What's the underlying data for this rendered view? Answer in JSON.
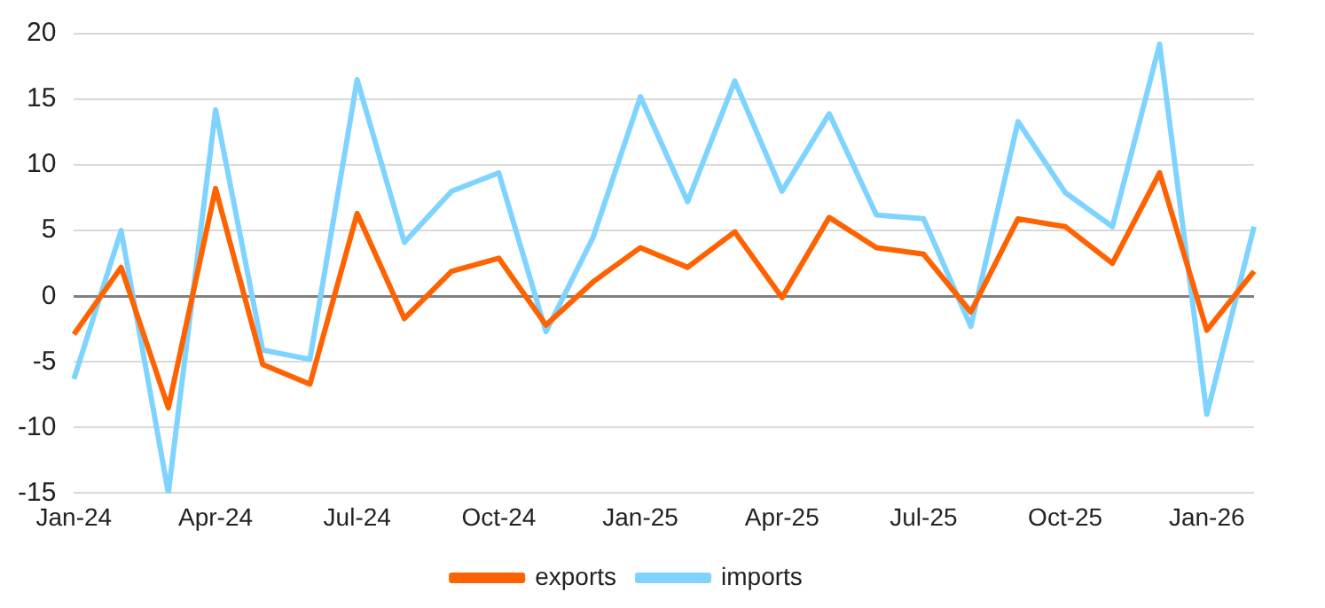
{
  "chart_data": {
    "type": "line",
    "categories": [
      "Jan-24",
      null,
      null,
      "Apr-24",
      null,
      null,
      "Jul-24",
      null,
      null,
      "Oct-24",
      null,
      null,
      "Jan-25",
      null,
      null,
      "Apr-25",
      null,
      null,
      "Jul-25",
      null,
      null,
      "Oct-25",
      null,
      null,
      "Jan-26",
      null
    ],
    "series": [
      {
        "name": "exports",
        "color": "#ff6200",
        "values": [
          -2.9,
          2.2,
          -8.5,
          8.2,
          -5.2,
          -6.7,
          6.3,
          -1.7,
          1.9,
          2.9,
          -2.2,
          1.1,
          3.7,
          2.2,
          4.9,
          -0.1,
          6.0,
          3.7,
          3.2,
          -1.2,
          5.9,
          5.3,
          2.5,
          9.4,
          -2.6,
          1.9
        ]
      },
      {
        "name": "imports",
        "color": "#7fd4ff",
        "values": [
          -6.3,
          5.0,
          -15.0,
          14.2,
          -4.1,
          -4.8,
          16.5,
          4.1,
          8.0,
          9.4,
          -2.7,
          4.5,
          15.2,
          7.2,
          16.4,
          8.0,
          13.9,
          6.2,
          5.9,
          -2.3,
          13.3,
          7.9,
          5.3,
          19.2,
          -9.0,
          5.3
        ]
      }
    ],
    "ylim": [
      -15,
      20
    ],
    "yticks": [
      -15,
      -10,
      -5,
      0,
      5,
      10,
      15,
      20
    ],
    "grid": "y",
    "legend": "bottom",
    "marker": "none",
    "line_style": "solid"
  }
}
